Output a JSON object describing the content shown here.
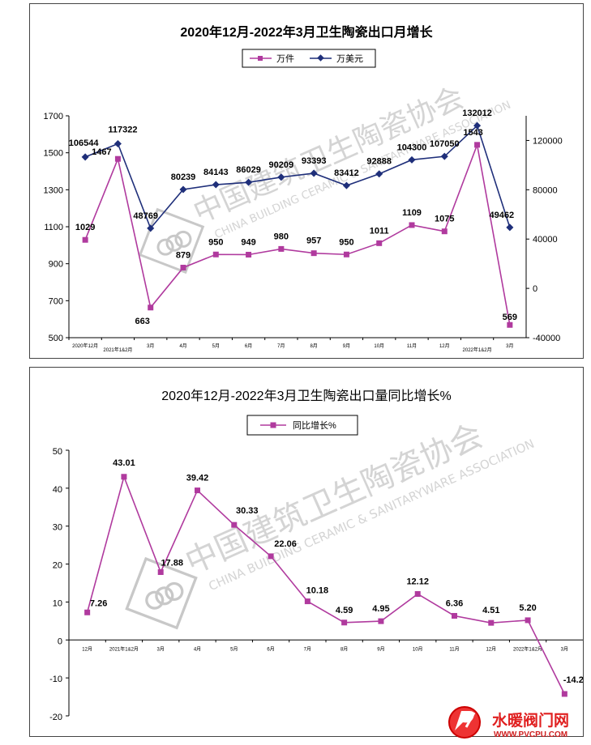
{
  "chart_data": [
    {
      "type": "line",
      "title": "2020年12月-2022年3月卫生陶瓷出口月增长",
      "categories": [
        "2020年12月",
        "2021年1&2月",
        "3月",
        "4月",
        "5月",
        "6月",
        "7月",
        "8月",
        "9月",
        "10月",
        "11月",
        "12月",
        "2022年1&2月",
        "3月"
      ],
      "series": [
        {
          "name": "万件",
          "axis": "left",
          "color": "#b03a9e",
          "marker": "square",
          "values": [
            1029,
            1467,
            663,
            879,
            950,
            949,
            980,
            957,
            950,
            1011,
            1109,
            1075,
            1543,
            569
          ]
        },
        {
          "name": "万美元",
          "axis": "right",
          "color": "#1f2f7a",
          "marker": "diamond",
          "values": [
            106544,
            117322,
            48769,
            80239,
            84143,
            86029,
            90209,
            93393,
            83412,
            92888,
            104300,
            107050,
            132012,
            49462
          ]
        }
      ],
      "left_ylim": [
        500,
        1700
      ],
      "left_yticks": [
        500,
        700,
        900,
        1100,
        1300,
        1500,
        1700
      ],
      "right_ylim": [
        -40000,
        140000
      ],
      "right_yticks": [
        -40000,
        0,
        40000,
        80000,
        120000
      ],
      "legend": "top-center"
    },
    {
      "type": "line",
      "title": "2020年12月-2022年3月卫生陶瓷出口量同比增长%",
      "categories": [
        "12月",
        "2021年1&2月",
        "3月",
        "4月",
        "5月",
        "6月",
        "7月",
        "8月",
        "9月",
        "10月",
        "11月",
        "12月",
        "2022年1&2月",
        "3月"
      ],
      "series": [
        {
          "name": "同比增长%",
          "color": "#b03a9e",
          "marker": "square",
          "values": [
            7.26,
            43.01,
            17.88,
            39.42,
            30.33,
            22.06,
            10.18,
            4.59,
            4.95,
            12.12,
            6.36,
            4.51,
            5.2,
            -14.23
          ]
        }
      ],
      "labels": [
        "7.26",
        "43.01",
        "17.88",
        "39.42",
        "30.33",
        "22.06",
        "10.18",
        "4.59",
        "4.95",
        "12.12",
        "6.36",
        "4.51",
        "5.20",
        "-14.23"
      ],
      "ylim": [
        -20,
        50
      ],
      "yticks": [
        -20,
        -10,
        0,
        10,
        20,
        30,
        40,
        50
      ],
      "legend": "top-center"
    }
  ],
  "watermark": {
    "cn": "中国建筑卫生陶瓷协会",
    "en": "CHINA BUILDING CERAMIC & SANITARYWARE ASSOCIATION"
  },
  "site_logo": {
    "name": "水暖阀门网",
    "url": "WWW.PVCPU.COM"
  }
}
